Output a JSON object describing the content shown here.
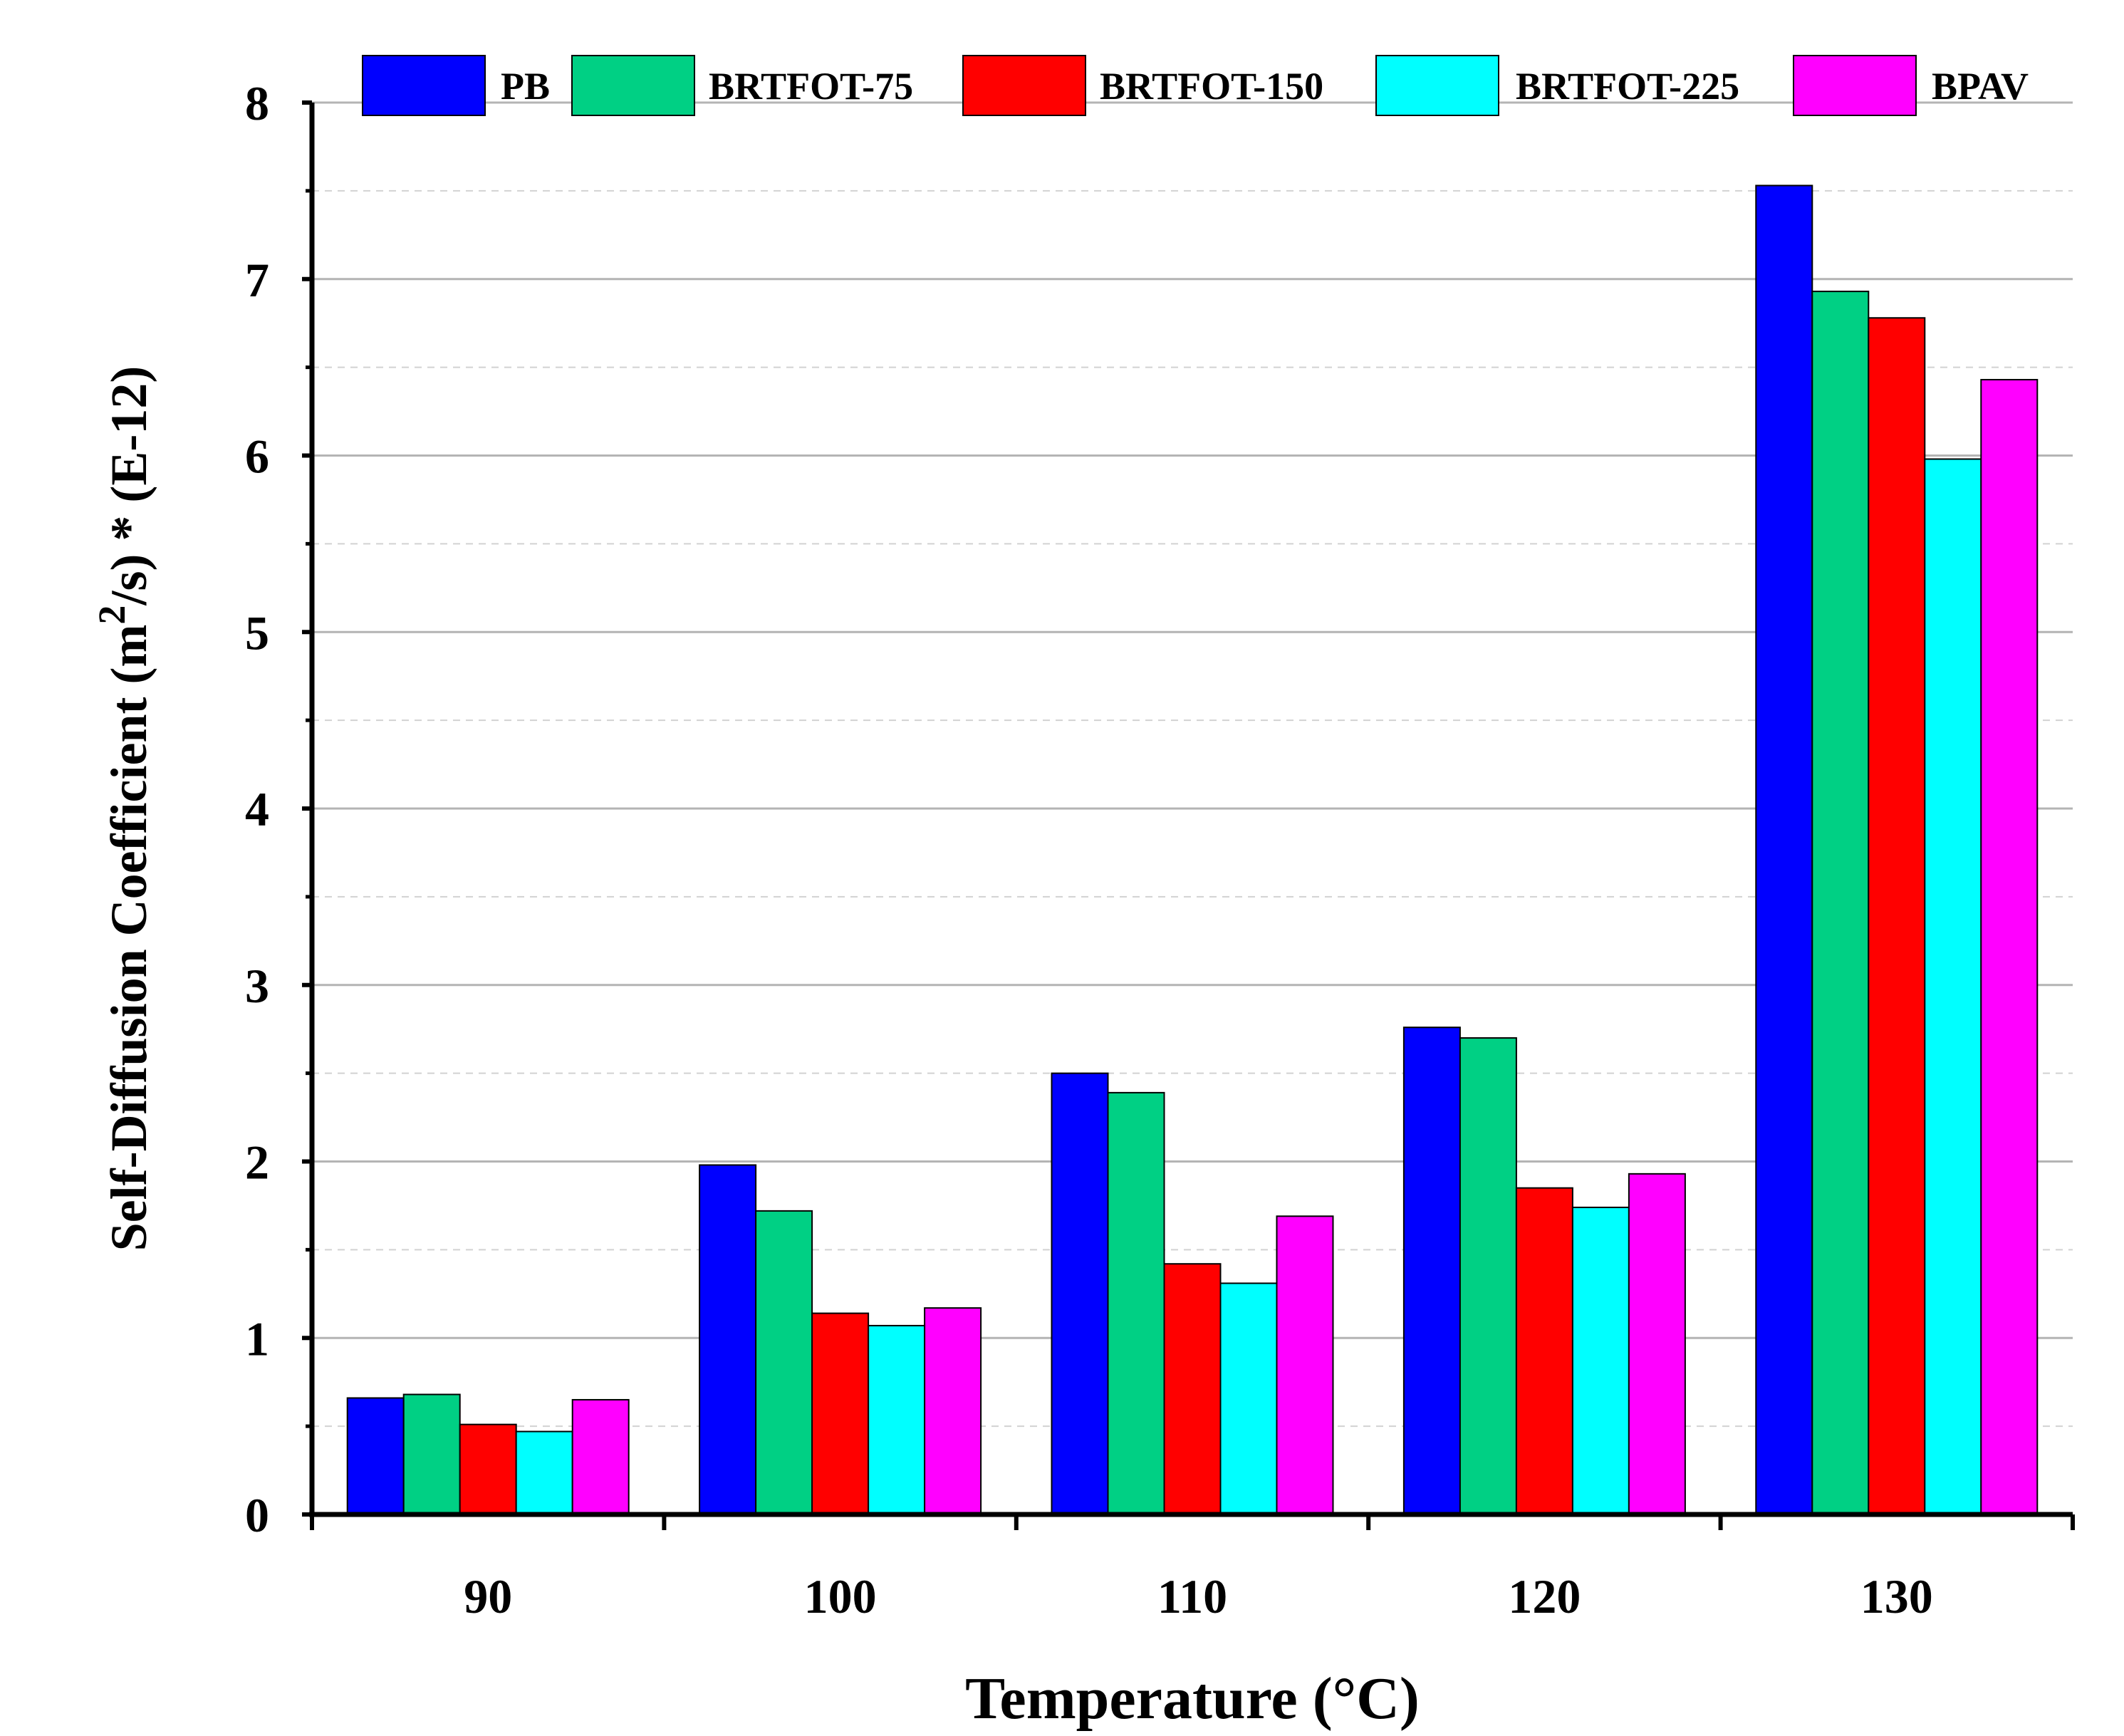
{
  "chart_data": {
    "type": "bar",
    "title": "",
    "xlabel": "Temperature (°C)",
    "ylabel": {
      "prefix": "Self-Diffusion Coefficient (m",
      "superscript": "2",
      "suffix": "/s) * (E-12)"
    },
    "categories": [
      "90",
      "100",
      "110",
      "120",
      "130"
    ],
    "ylim": [
      0,
      8
    ],
    "yticks": [
      "0",
      "1",
      "2",
      "3",
      "4",
      "5",
      "6",
      "7",
      "8"
    ],
    "grid": "major solid, minor dashed",
    "legend_position": "top",
    "series": [
      {
        "name": "PB",
        "color": "#0000ff",
        "values": [
          0.66,
          1.98,
          2.5,
          2.76,
          7.53
        ]
      },
      {
        "name": "BRTFOT-75",
        "color": "#00d084",
        "values": [
          0.68,
          1.72,
          2.39,
          2.7,
          6.93
        ]
      },
      {
        "name": "BRTFOT-150",
        "color": "#ff0000",
        "values": [
          0.51,
          1.14,
          1.42,
          1.85,
          6.78
        ]
      },
      {
        "name": "BRTFOT-225",
        "color": "#00ffff",
        "values": [
          0.47,
          1.07,
          1.31,
          1.74,
          5.98
        ]
      },
      {
        "name": "BPAV",
        "color": "#ff00ff",
        "values": [
          0.65,
          1.17,
          1.69,
          1.93,
          6.43
        ]
      }
    ]
  }
}
